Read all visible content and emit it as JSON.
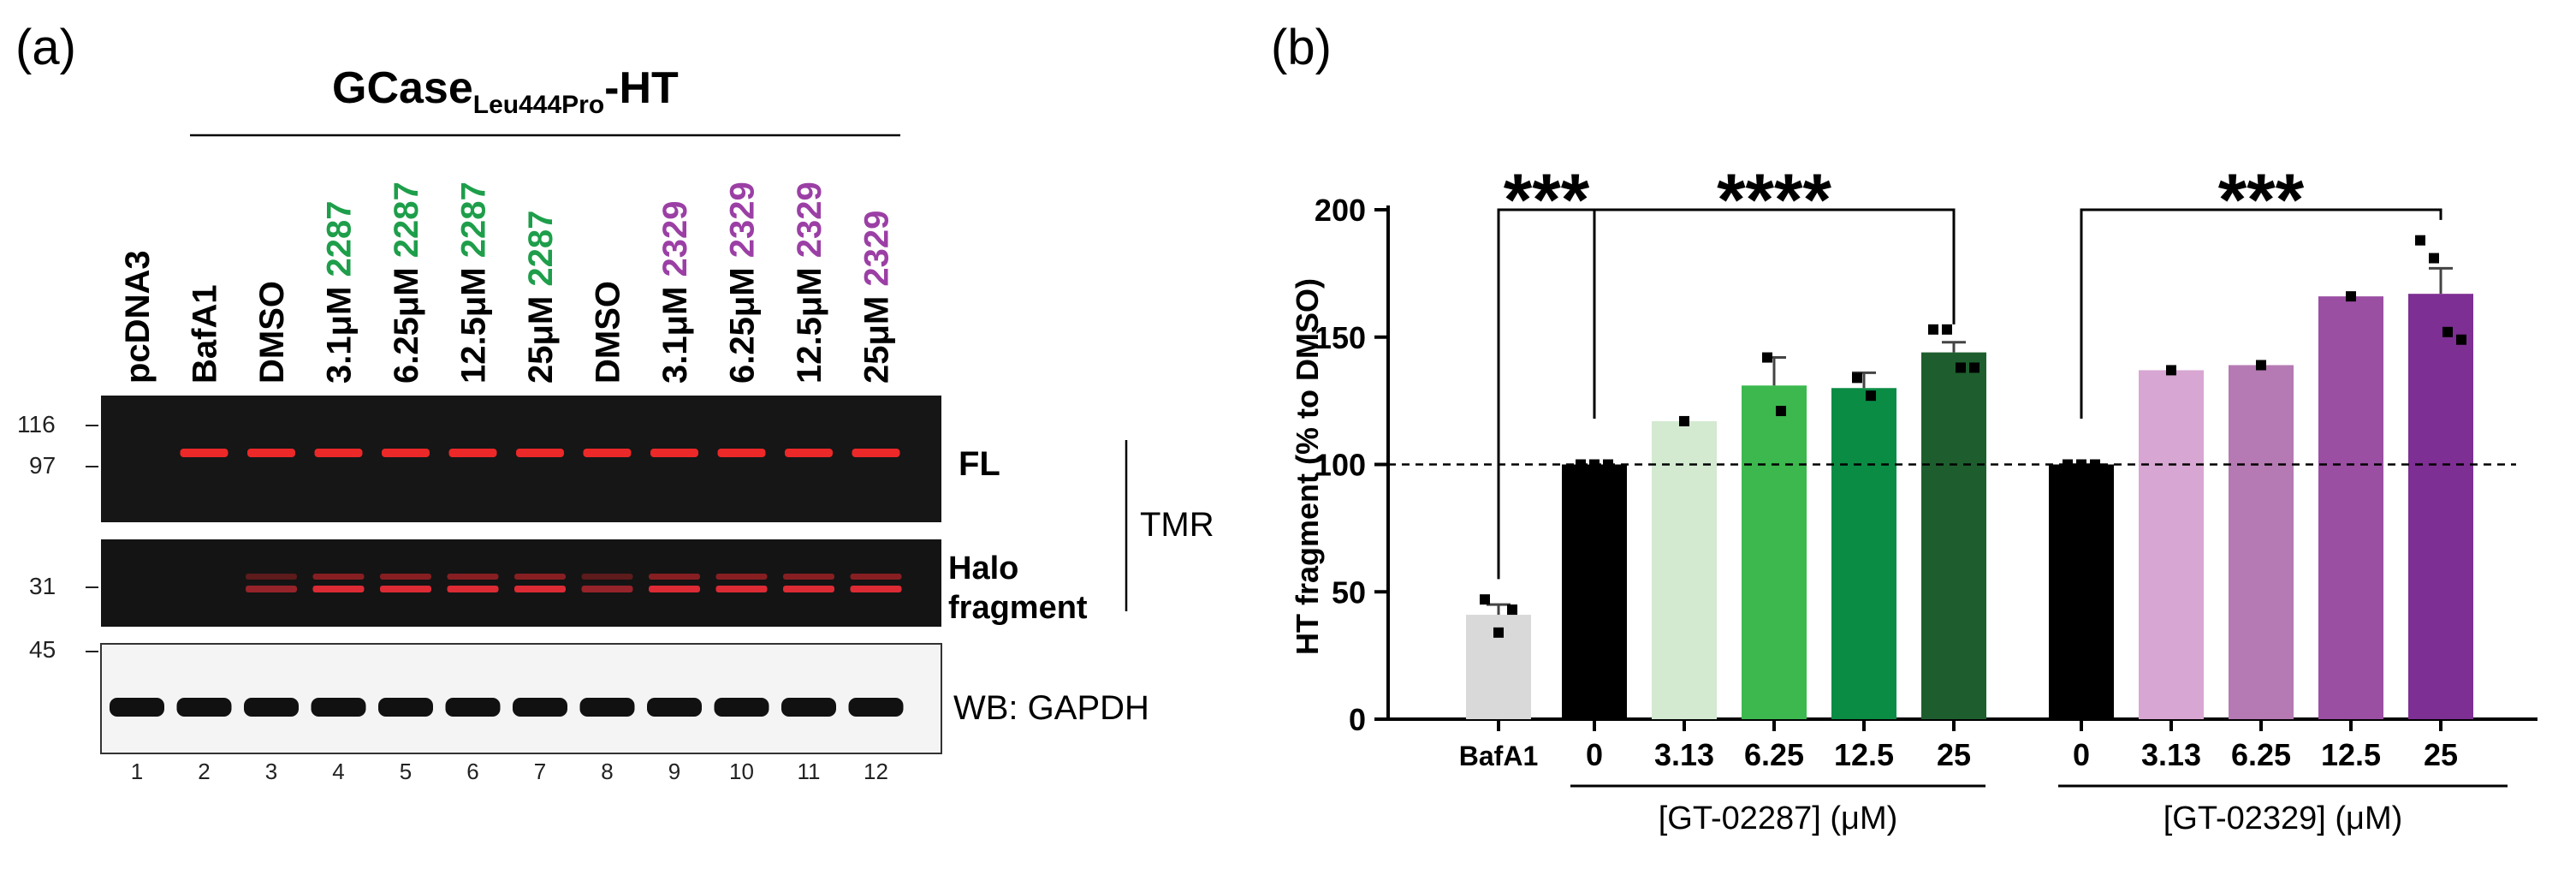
{
  "panel_a": {
    "label": "(a)",
    "construct": {
      "main": "GCase",
      "subscript": "Leu444Pro",
      "suffix": "-HT"
    },
    "lanes": [
      {
        "lane": "1",
        "dose": "pcDNA3",
        "compound": ""
      },
      {
        "lane": "2",
        "dose": "BafA1",
        "compound": ""
      },
      {
        "lane": "3",
        "dose": "DMSO",
        "compound": ""
      },
      {
        "lane": "4",
        "dose": "3.1μM",
        "compound": "2287"
      },
      {
        "lane": "5",
        "dose": "6.25μM",
        "compound": "2287"
      },
      {
        "lane": "6",
        "dose": "12.5μM",
        "compound": "2287"
      },
      {
        "lane": "7",
        "dose": "25μM",
        "compound": "2287"
      },
      {
        "lane": "8",
        "dose": "DMSO",
        "compound": ""
      },
      {
        "lane": "9",
        "dose": "3.1μM",
        "compound": "2329"
      },
      {
        "lane": "10",
        "dose": "6.25μM",
        "compound": "2329"
      },
      {
        "lane": "11",
        "dose": "12.5μM",
        "compound": "2329"
      },
      {
        "lane": "12",
        "dose": "25μM",
        "compound": "2329"
      }
    ],
    "mw_markers": {
      "m116": "116",
      "m97": "97",
      "m31": "31",
      "m45": "45"
    },
    "band_labels": {
      "fl": "FL",
      "halo": "Halo",
      "fragment": "fragment",
      "tmr": "TMR",
      "gapdh": "WB: GAPDH"
    },
    "colors": {
      "c2287": "#1e9e4a",
      "c2329": "#9b3fa5",
      "tmr_band": "#ff2a2a"
    }
  },
  "chart_data": {
    "type": "bar",
    "label": "(b)",
    "title": "",
    "ylabel": "HT fragment (% to DMSO)",
    "ylim": [
      0,
      200
    ],
    "yticks": [
      0,
      50,
      100,
      150,
      200
    ],
    "reference_line": 100,
    "categories": [
      "BafA1",
      "0",
      "3.13",
      "6.25",
      "12.5",
      "25",
      "0",
      "3.13",
      "6.25",
      "12.5",
      "25"
    ],
    "values": [
      41,
      100,
      117,
      131,
      130,
      144,
      100,
      137,
      139,
      166,
      167
    ],
    "errors": [
      4,
      0,
      0,
      11,
      6,
      4,
      0,
      0,
      0,
      0,
      10
    ],
    "points": [
      [
        47,
        34,
        43
      ],
      [
        100,
        100,
        100
      ],
      [
        117
      ],
      [
        142,
        121
      ],
      [
        134,
        127
      ],
      [
        153,
        153,
        138,
        138
      ],
      [
        100,
        100,
        100
      ],
      [
        137
      ],
      [
        139
      ],
      [
        166
      ],
      [
        188,
        181,
        152,
        149
      ]
    ],
    "bar_colors": [
      "#d9d9d9",
      "#000000",
      "#d3ead0",
      "#3cb84e",
      "#0b8c44",
      "#1e5e2e",
      "#000000",
      "#d8a6d3",
      "#b57ab3",
      "#9a4fa3",
      "#7e2f93"
    ],
    "groups": [
      "[GT-02287] (μM)",
      "[GT-02329] (μM)"
    ],
    "significance": [
      {
        "label": "***",
        "from": "BafA1",
        "to": "0 (GT-02287)"
      },
      {
        "label": "****",
        "from": "0 (GT-02287)",
        "to": "25 (GT-02287)"
      },
      {
        "label": "***",
        "from": "0 (GT-02329)",
        "to": "25 (GT-02329)"
      }
    ]
  }
}
